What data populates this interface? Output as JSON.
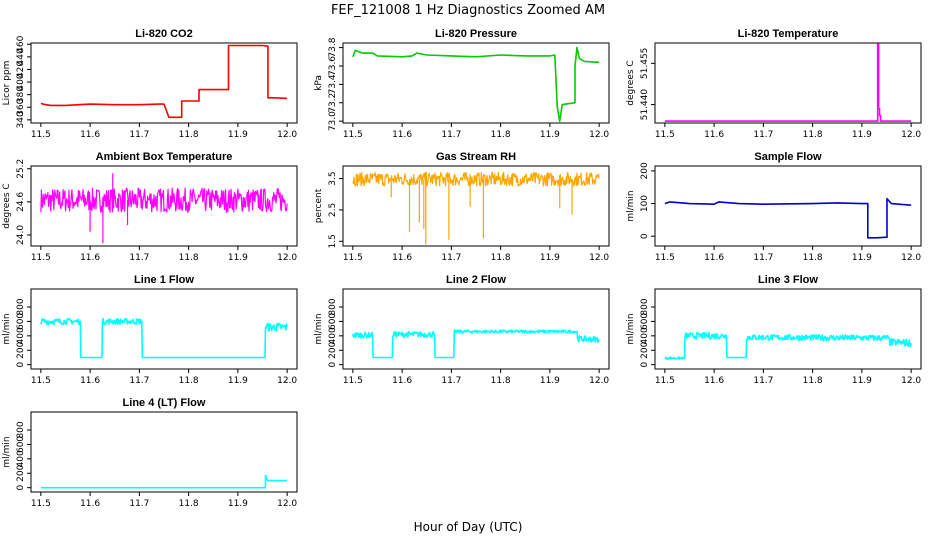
{
  "title": "FEF_121008 1 Hz Diagnostics Zoomed AM",
  "xlabel": "Hour of Day (UTC)",
  "chart_data": [
    {
      "type": "line",
      "title": "Li-820 CO2",
      "ylabel": "Licor ppm",
      "color": "#ff0000",
      "xlim": [
        11.5,
        12.0
      ],
      "xticks": [
        "11.5",
        "11.6",
        "11.7",
        "11.8",
        "11.9",
        "12.0"
      ],
      "ylim": [
        335,
        462
      ],
      "yticks": [
        "340",
        "360",
        "380",
        "400",
        "420",
        "440",
        "460"
      ],
      "x": [
        11.5,
        11.51,
        11.52,
        11.55,
        11.6,
        11.65,
        11.7,
        11.74,
        11.75,
        11.76,
        11.785,
        11.786,
        11.8,
        11.82,
        11.821,
        11.85,
        11.88,
        11.881,
        11.95,
        11.96,
        11.961,
        11.975,
        12.0
      ],
      "y": [
        366,
        364,
        363,
        363,
        365,
        364,
        364,
        365,
        365,
        344,
        344,
        370,
        370,
        370,
        388,
        388,
        388,
        458,
        458,
        457,
        375,
        375,
        374
      ]
    },
    {
      "type": "line",
      "title": "Li-820 Pressure",
      "ylabel": "kPa",
      "color": "#00cc00",
      "xlim": [
        11.5,
        12.0
      ],
      "xticks": [
        "11.5",
        "11.6",
        "11.7",
        "11.8",
        "11.9",
        "12.0"
      ],
      "ylim": [
        72.98,
        73.85
      ],
      "yticks": [
        "73.0",
        "73.2",
        "73.4",
        "73.6",
        "73.8"
      ],
      "x": [
        11.5,
        11.505,
        11.52,
        11.54,
        11.55,
        11.6,
        11.62,
        11.63,
        11.65,
        11.7,
        11.75,
        11.8,
        11.85,
        11.9,
        11.91,
        11.915,
        11.92,
        11.925,
        11.95,
        11.951,
        11.955,
        11.96,
        11.97,
        12.0
      ],
      "y": [
        73.7,
        73.77,
        73.74,
        73.74,
        73.71,
        73.7,
        73.71,
        73.74,
        73.72,
        73.71,
        73.7,
        73.72,
        73.71,
        73.71,
        73.72,
        73.15,
        73.0,
        73.18,
        73.2,
        73.6,
        73.8,
        73.68,
        73.65,
        73.64
      ]
    },
    {
      "type": "line",
      "title": "Li-820 Temperature",
      "ylabel": "degrees C",
      "color": "#ff00ff",
      "xlim": [
        11.5,
        12.0
      ],
      "xticks": [
        "11.5",
        "11.6",
        "11.7",
        "11.8",
        "11.9",
        "12.0"
      ],
      "ylim": [
        51.4333,
        51.4624
      ],
      "yticks": [
        "51.440",
        "51.455"
      ],
      "x": [
        11.5,
        11.93,
        11.932,
        11.934,
        11.936,
        11.938,
        12.0
      ],
      "y": [
        51.434,
        51.434,
        51.462,
        51.4385,
        51.436,
        51.434,
        51.434
      ]
    },
    {
      "type": "line",
      "title": "Ambient Box Temperature",
      "ylabel": "degrees C",
      "color": "#ff00ff",
      "xlim": [
        11.5,
        12.0
      ],
      "xticks": [
        "11.5",
        "11.6",
        "11.7",
        "11.8",
        "11.9",
        "12.0"
      ],
      "ylim": [
        23.8,
        25.25
      ],
      "yticks": [
        "24.0",
        "24.6",
        "25.2"
      ],
      "center": 24.63,
      "amp": 0.22,
      "spikes": [
        [
          11.626,
          23.85
        ],
        [
          11.646,
          25.12
        ],
        [
          11.6,
          24.06
        ],
        [
          11.676,
          24.18
        ]
      ]
    },
    {
      "type": "line",
      "title": "Gas Stream RH",
      "ylabel": "percent",
      "color": "#ffa500",
      "xlim": [
        11.5,
        12.0
      ],
      "xticks": [
        "11.5",
        "11.6",
        "11.7",
        "11.8",
        "11.9",
        "12.0"
      ],
      "ylim": [
        1.35,
        3.9
      ],
      "yticks": [
        "1.5",
        "2.5",
        "3.5"
      ],
      "center": 3.48,
      "amp": 0.22,
      "dips": [
        [
          11.578,
          2.9
        ],
        [
          11.615,
          1.8
        ],
        [
          11.635,
          2.1
        ],
        [
          11.644,
          1.9
        ],
        [
          11.648,
          1.4
        ],
        [
          11.695,
          1.55
        ],
        [
          11.765,
          1.6
        ],
        [
          11.738,
          2.6
        ],
        [
          11.92,
          2.55
        ],
        [
          11.945,
          2.35
        ]
      ]
    },
    {
      "type": "line",
      "title": "Sample Flow",
      "ylabel": "ml/min",
      "color": "#0000cc",
      "xlim": [
        11.5,
        12.0
      ],
      "xticks": [
        "11.5",
        "11.6",
        "11.7",
        "11.8",
        "11.9",
        "12.0"
      ],
      "ylim": [
        -30,
        215
      ],
      "yticks": [
        "0",
        "100",
        "200"
      ],
      "x": [
        11.5,
        11.51,
        11.55,
        11.6,
        11.61,
        11.65,
        11.7,
        11.8,
        11.85,
        11.9,
        11.91,
        11.912,
        11.93,
        11.95,
        11.951,
        11.96,
        12.0
      ],
      "y": [
        100,
        105,
        100,
        98,
        105,
        100,
        98,
        100,
        102,
        100,
        100,
        -5,
        -5,
        -3,
        115,
        100,
        95
      ]
    },
    {
      "type": "line",
      "title": "Line 1 Flow",
      "ylabel": "ml/min",
      "color": "#00ffff",
      "xlim": [
        11.5,
        12.0
      ],
      "xticks": [
        "11.5",
        "11.6",
        "11.7",
        "11.8",
        "11.9",
        "12.0"
      ],
      "ylim": [
        -60,
        1050
      ],
      "yticks": [
        "0",
        "200",
        "400",
        "600",
        "800"
      ],
      "x": [
        11.5,
        11.58,
        11.581,
        11.624,
        11.625,
        11.705,
        11.706,
        11.955,
        11.956,
        12.0
      ],
      "y": [
        600,
        600,
        100,
        100,
        600,
        600,
        100,
        100,
        520,
        520
      ],
      "amp": [
        40,
        0,
        40,
        0,
        60
      ]
    },
    {
      "type": "line",
      "title": "Line 2 Flow",
      "ylabel": "ml/min",
      "color": "#00ffff",
      "xlim": [
        11.5,
        12.0
      ],
      "xticks": [
        "11.5",
        "11.6",
        "11.7",
        "11.8",
        "11.9",
        "12.0"
      ],
      "ylim": [
        -60,
        1050
      ],
      "yticks": [
        "0",
        "200",
        "400",
        "600",
        "800"
      ],
      "x": [
        11.5,
        11.54,
        11.541,
        11.58,
        11.581,
        11.666,
        11.667,
        11.705,
        11.706,
        11.955,
        11.956,
        12.0
      ],
      "y": [
        410,
        410,
        100,
        100,
        420,
        420,
        100,
        100,
        460,
        460,
        360,
        350
      ],
      "amp": [
        40,
        0,
        40,
        0,
        20,
        40
      ]
    },
    {
      "type": "line",
      "title": "Line 3 Flow",
      "ylabel": "ml/min",
      "color": "#00ffff",
      "xlim": [
        11.5,
        12.0
      ],
      "xticks": [
        "11.5",
        "11.6",
        "11.7",
        "11.8",
        "11.9",
        "12.0"
      ],
      "ylim": [
        -60,
        1050
      ],
      "yticks": [
        "0",
        "200",
        "400",
        "600",
        "800"
      ],
      "x": [
        11.5,
        11.54,
        11.541,
        11.625,
        11.626,
        11.665,
        11.666,
        11.955,
        11.956,
        12.0
      ],
      "y": [
        90,
        90,
        400,
        400,
        100,
        100,
        380,
        370,
        310,
        300
      ],
      "amp": [
        15,
        45,
        0,
        40,
        50
      ]
    },
    {
      "type": "line",
      "title": "Line 4 (LT) Flow",
      "ylabel": "ml/min",
      "color": "#00ffff",
      "xlim": [
        11.5,
        12.0
      ],
      "xticks": [
        "11.5",
        "11.6",
        "11.7",
        "11.8",
        "11.9",
        "12.0"
      ],
      "ylim": [
        -60,
        1050
      ],
      "yticks": [
        "0",
        "200",
        "400",
        "600",
        "800"
      ],
      "x": [
        11.5,
        11.955,
        11.956,
        11.96,
        12.0
      ],
      "y": [
        0,
        0,
        170,
        100,
        100
      ]
    }
  ]
}
